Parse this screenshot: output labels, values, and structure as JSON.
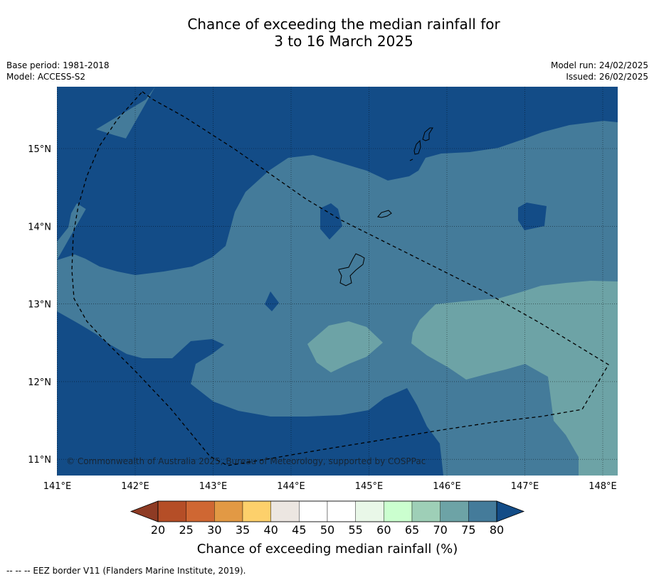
{
  "title": {
    "line1": "Chance of exceeding the median rainfall for",
    "line2": "3 to 16 March 2025"
  },
  "meta_left": {
    "base_period": "Base period: 1981-2018",
    "model": "Model: ACCESS-S2"
  },
  "meta_right": {
    "model_run": "Model run: 24/02/2025",
    "issued": "Issued: 26/02/2025"
  },
  "map": {
    "copyright": "© Commonwealth of Australia 2025, Bureau of Meteorology, supported by COSPPac",
    "lon_labels": [
      "141°E",
      "142°E",
      "143°E",
      "144°E",
      "145°E",
      "146°E",
      "147°E",
      "148°E"
    ],
    "lat_labels": [
      "15°N",
      "14°N",
      "13°N",
      "12°N",
      "11°N"
    ],
    "colors": {
      "class_80_plus": "#134c87",
      "class_75_80": "#447b9a",
      "class_70_75": "#6da3a6"
    }
  },
  "colorbar": {
    "ticks": [
      "20",
      "25",
      "30",
      "35",
      "40",
      "45",
      "50",
      "55",
      "60",
      "65",
      "70",
      "75",
      "80"
    ],
    "colors": [
      "#8e3b24",
      "#b54e27",
      "#cf6733",
      "#e29944",
      "#fdd06b",
      "#ece6e1",
      "#ffffff",
      "#ffffff",
      "#e9f7e8",
      "#cbffcf",
      "#9ecfb7",
      "#6da3a6",
      "#447b9a",
      "#134c87"
    ],
    "label": "Chance of exceeding median rainfall (%)"
  },
  "footnote": "--  --  -- EEZ border V11 (Flanders Marine Institute, 2019)."
}
